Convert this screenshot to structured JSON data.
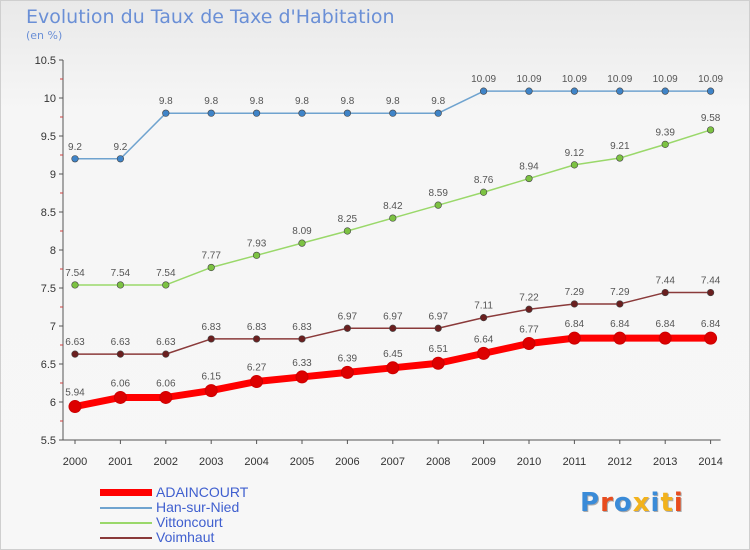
{
  "title": "Evolution du Taux de Taxe d'Habitation",
  "subtitle": "(en %)",
  "brand": {
    "text": "Proxiti",
    "colors": [
      "#3a8bd8",
      "#e84c1e",
      "#3a8bd8",
      "#f2b21c",
      "#3a8bd8",
      "#f2b21c",
      "#e84c1e"
    ]
  },
  "chart_data": {
    "type": "line",
    "x": [
      "2000",
      "2001",
      "2002",
      "2003",
      "2004",
      "2005",
      "2006",
      "2007",
      "2008",
      "2009",
      "2010",
      "2011",
      "2012",
      "2013",
      "2014"
    ],
    "ylim": [
      5.5,
      10.5
    ],
    "yticks": [
      "5.5",
      "6",
      "6.5",
      "7",
      "7.5",
      "8",
      "8.5",
      "9",
      "9.5",
      "10",
      "10.5"
    ],
    "grid": false,
    "legend_position": "bottom-left",
    "series": [
      {
        "name": "ADAINCOURT",
        "color": "#ff0000",
        "marker": "#dd0000",
        "bold": true,
        "values": [
          5.94,
          6.06,
          6.06,
          6.15,
          6.27,
          6.33,
          6.39,
          6.45,
          6.51,
          6.64,
          6.77,
          6.84,
          6.84,
          6.84,
          6.84
        ],
        "labels": [
          "5.94",
          "6.06",
          "6.06",
          "6.15",
          "6.27",
          "6.33",
          "6.39",
          "6.45",
          "6.51",
          "6.64",
          "6.77",
          "6.84",
          "6.84",
          "6.84",
          "6.84"
        ]
      },
      {
        "name": "Han-sur-Nied",
        "color": "#6fa3cf",
        "marker": "#3f84c8",
        "bold": false,
        "values": [
          9.2,
          9.2,
          9.8,
          9.8,
          9.8,
          9.8,
          9.8,
          9.8,
          9.8,
          10.09,
          10.09,
          10.09,
          10.09,
          10.09,
          10.09
        ],
        "labels": [
          "9.2",
          "9.2",
          "9.8",
          "9.8",
          "9.8",
          "9.8",
          "9.8",
          "9.8",
          "9.8",
          "10.09",
          "10.09",
          "10.09",
          "10.09",
          "10.09",
          "10.09"
        ]
      },
      {
        "name": "Vittoncourt",
        "color": "#9ad86a",
        "marker": "#7cc242",
        "bold": false,
        "values": [
          7.54,
          7.54,
          7.54,
          7.77,
          7.93,
          8.09,
          8.25,
          8.42,
          8.59,
          8.76,
          8.94,
          9.12,
          9.21,
          9.39,
          9.58
        ],
        "labels": [
          "7.54",
          "7.54",
          "7.54",
          "7.77",
          "7.93",
          "8.09",
          "8.25",
          "8.42",
          "8.59",
          "8.76",
          "8.94",
          "9.12",
          "9.21",
          "9.39",
          "9.58"
        ]
      },
      {
        "name": "Voimhaut",
        "color": "#8a3a3a",
        "marker": "#6a1f1f",
        "bold": false,
        "values": [
          6.63,
          6.63,
          6.63,
          6.83,
          6.83,
          6.83,
          6.97,
          6.97,
          6.97,
          7.11,
          7.22,
          7.29,
          7.29,
          7.44,
          7.44
        ],
        "labels": [
          "6.63",
          "6.63",
          "6.63",
          "6.83",
          "6.83",
          "6.83",
          "6.97",
          "6.97",
          "6.97",
          "7.11",
          "7.22",
          "7.29",
          "7.29",
          "7.44",
          "7.44"
        ]
      }
    ]
  }
}
